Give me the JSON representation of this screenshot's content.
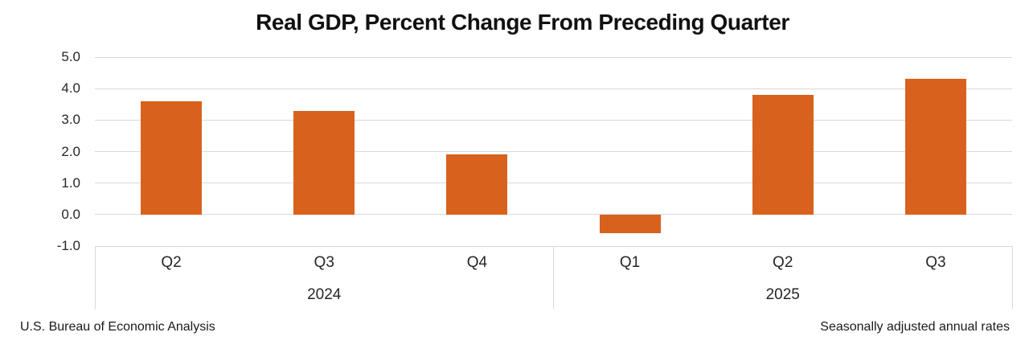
{
  "title": "Real GDP, Percent Change From Preceding Quarter",
  "footer": {
    "left": "U.S. Bureau of Economic Analysis",
    "right": "Seasonally adjusted annual rates"
  },
  "colors": {
    "bar": "#d8621d",
    "gridline": "#d9d9d9",
    "axis_text": "#262626",
    "title_text": "#111111"
  },
  "chart_data": {
    "type": "bar",
    "title": "Real GDP, Percent Change From Preceding Quarter",
    "categories": [
      "Q2",
      "Q3",
      "Q4",
      "Q1",
      "Q2",
      "Q3"
    ],
    "year_groups": [
      {
        "label": "2024",
        "count": 3
      },
      {
        "label": "2025",
        "count": 3
      }
    ],
    "values": [
      3.6,
      3.3,
      1.9,
      -0.6,
      3.8,
      4.3
    ],
    "ylabel": "",
    "xlabel": "",
    "ylim": [
      -1.0,
      5.0
    ],
    "ytick_step": 1.0,
    "ytick_labels": [
      "5.0",
      "4.0",
      "3.0",
      "2.0",
      "1.0",
      "0.0",
      "-1.0"
    ],
    "grid": true,
    "legend": "none",
    "notes": {
      "source": "U.S. Bureau of Economic Analysis",
      "adjustment": "Seasonally adjusted annual rates"
    }
  }
}
